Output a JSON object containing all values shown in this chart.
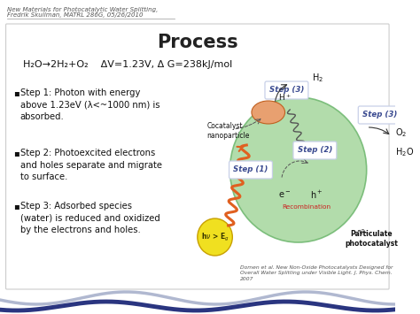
{
  "background_color": "#ffffff",
  "header_text_line1": "New Materials for Photocatalytic Water Splitting,",
  "header_text_line2": "Fredrik Skullman, MATRL 286G, 05/26/2010",
  "title": "Process",
  "equation": "H₂O→2H₂+O₂    ΔV=1.23V, Δ G=238kJ/mol",
  "step1_bullet": "▪",
  "step1_text": "Step 1: Photon with energy\nabove 1.23eV (λ<~1000 nm) is\nabsorbed.",
  "step2_bullet": "▪",
  "step2_text": "Step 2: Photoexcited electrons\nand holes separate and migrate\nto surface.",
  "step3_bullet": "▪",
  "step3_text": "Step 3: Adsorbed species\n(water) is reduced and oxidized\nby the electrons and holes.",
  "citation": "Domen et al. New Non-Oxide Photocatalysts Designed for\nOverall Water Splitting under Visible Light. J. Phys. Chem.\n2007",
  "wave_bottom_color1": "#b0b8d0",
  "wave_bottom_color2": "#2a3580",
  "step_box_color": "#c8d0e8",
  "step_box_text_color": "#3a4a90",
  "circle_color": "#a8d8a0",
  "cocatalyst_color": "#e8a070",
  "sun_color": "#f0e020",
  "photon_color": "#e06020",
  "recomb_color": "#cc2020"
}
